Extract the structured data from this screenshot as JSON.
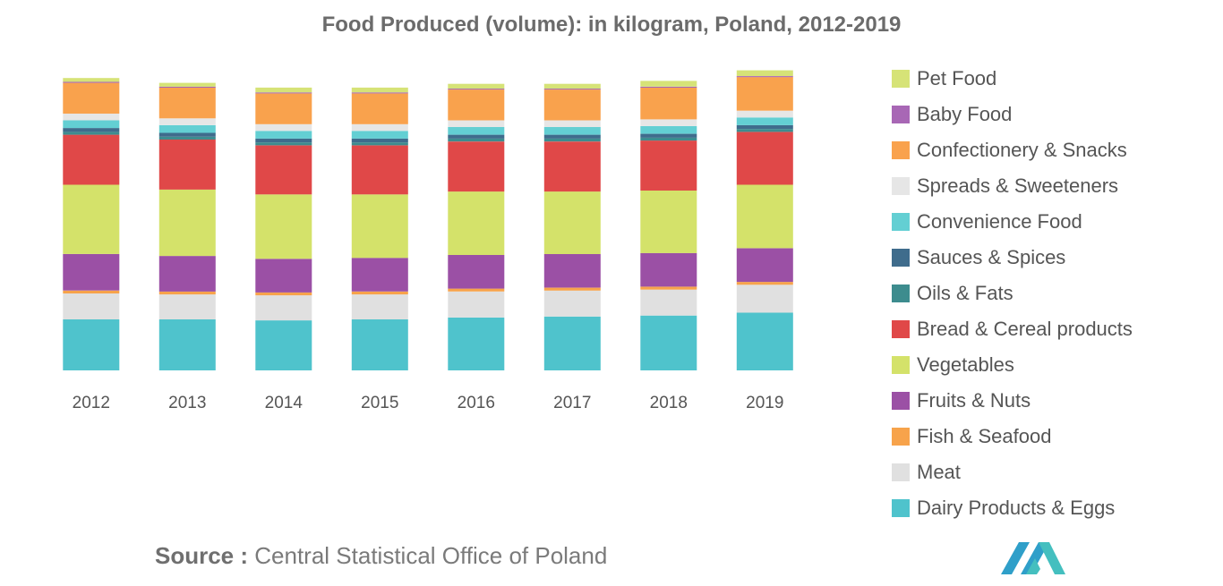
{
  "chart_data": {
    "type": "bar",
    "stacked": true,
    "title": "Food Produced (volume): in kilogram, Poland, 2012-2019",
    "xlabel": "",
    "ylabel": "",
    "gridlines": false,
    "legend_position": "right",
    "categories": [
      "2012",
      "2013",
      "2014",
      "2015",
      "2016",
      "2017",
      "2018",
      "2019"
    ],
    "series": [
      {
        "name": "Dairy Products & Eggs",
        "color": "#4fc3cc",
        "values": [
          26.5,
          26.5,
          26.0,
          26.5,
          27.5,
          28.0,
          28.5,
          30.0
        ]
      },
      {
        "name": "Meat",
        "color": "#e0e0e0",
        "values": [
          13.5,
          13.0,
          13.0,
          13.0,
          13.5,
          13.5,
          13.5,
          14.5
        ]
      },
      {
        "name": "Fish & Seafood",
        "color": "#f7a34b",
        "values": [
          1.5,
          1.5,
          1.5,
          1.5,
          1.5,
          1.5,
          1.5,
          1.5
        ]
      },
      {
        "name": "Fruits & Nuts",
        "color": "#9b50a5",
        "values": [
          19.0,
          18.5,
          17.5,
          17.5,
          17.5,
          17.5,
          17.5,
          17.5
        ]
      },
      {
        "name": "Vegetables",
        "color": "#d4e26a",
        "values": [
          36.0,
          34.5,
          33.5,
          33.0,
          33.0,
          32.5,
          32.5,
          33.0
        ]
      },
      {
        "name": "Bread & Cereal products",
        "color": "#e04848",
        "values": [
          26.0,
          26.0,
          25.5,
          25.5,
          26.0,
          26.0,
          26.0,
          27.5
        ]
      },
      {
        "name": "Oils & Fats",
        "color": "#3d8c8e",
        "values": [
          1.5,
          1.5,
          1.5,
          1.5,
          1.5,
          1.5,
          1.5,
          1.5
        ]
      },
      {
        "name": "Sauces & Spices",
        "color": "#3f6c8c",
        "values": [
          2.0,
          2.0,
          2.0,
          2.0,
          2.0,
          2.0,
          2.0,
          2.0
        ]
      },
      {
        "name": "Convenience Food",
        "color": "#63cfd3",
        "values": [
          4.0,
          4.0,
          4.0,
          4.0,
          4.0,
          4.0,
          4.0,
          4.0
        ]
      },
      {
        "name": "Spreads & Sweeteners",
        "color": "#e6e6e6",
        "values": [
          3.5,
          3.5,
          3.5,
          3.5,
          3.5,
          3.5,
          3.5,
          3.5
        ]
      },
      {
        "name": "Confectionery & Snacks",
        "color": "#f9a24d",
        "values": [
          16.0,
          16.0,
          16.0,
          16.0,
          16.0,
          16.0,
          16.5,
          17.5
        ]
      },
      {
        "name": "Baby Food",
        "color": "#a867b5",
        "values": [
          0.5,
          0.5,
          0.5,
          0.5,
          0.5,
          0.5,
          0.5,
          0.5
        ]
      },
      {
        "name": "Pet Food",
        "color": "#d6e377",
        "values": [
          2.0,
          2.0,
          2.5,
          2.5,
          2.5,
          2.5,
          3.0,
          3.0
        ]
      }
    ],
    "ylim": [
      0,
      160
    ]
  },
  "source": {
    "label": "Source :",
    "text": "Central Statistical Office of Poland"
  },
  "colors": {
    "title": "#6b6b6b",
    "text": "#555555",
    "logo": "#2f9fc9"
  }
}
